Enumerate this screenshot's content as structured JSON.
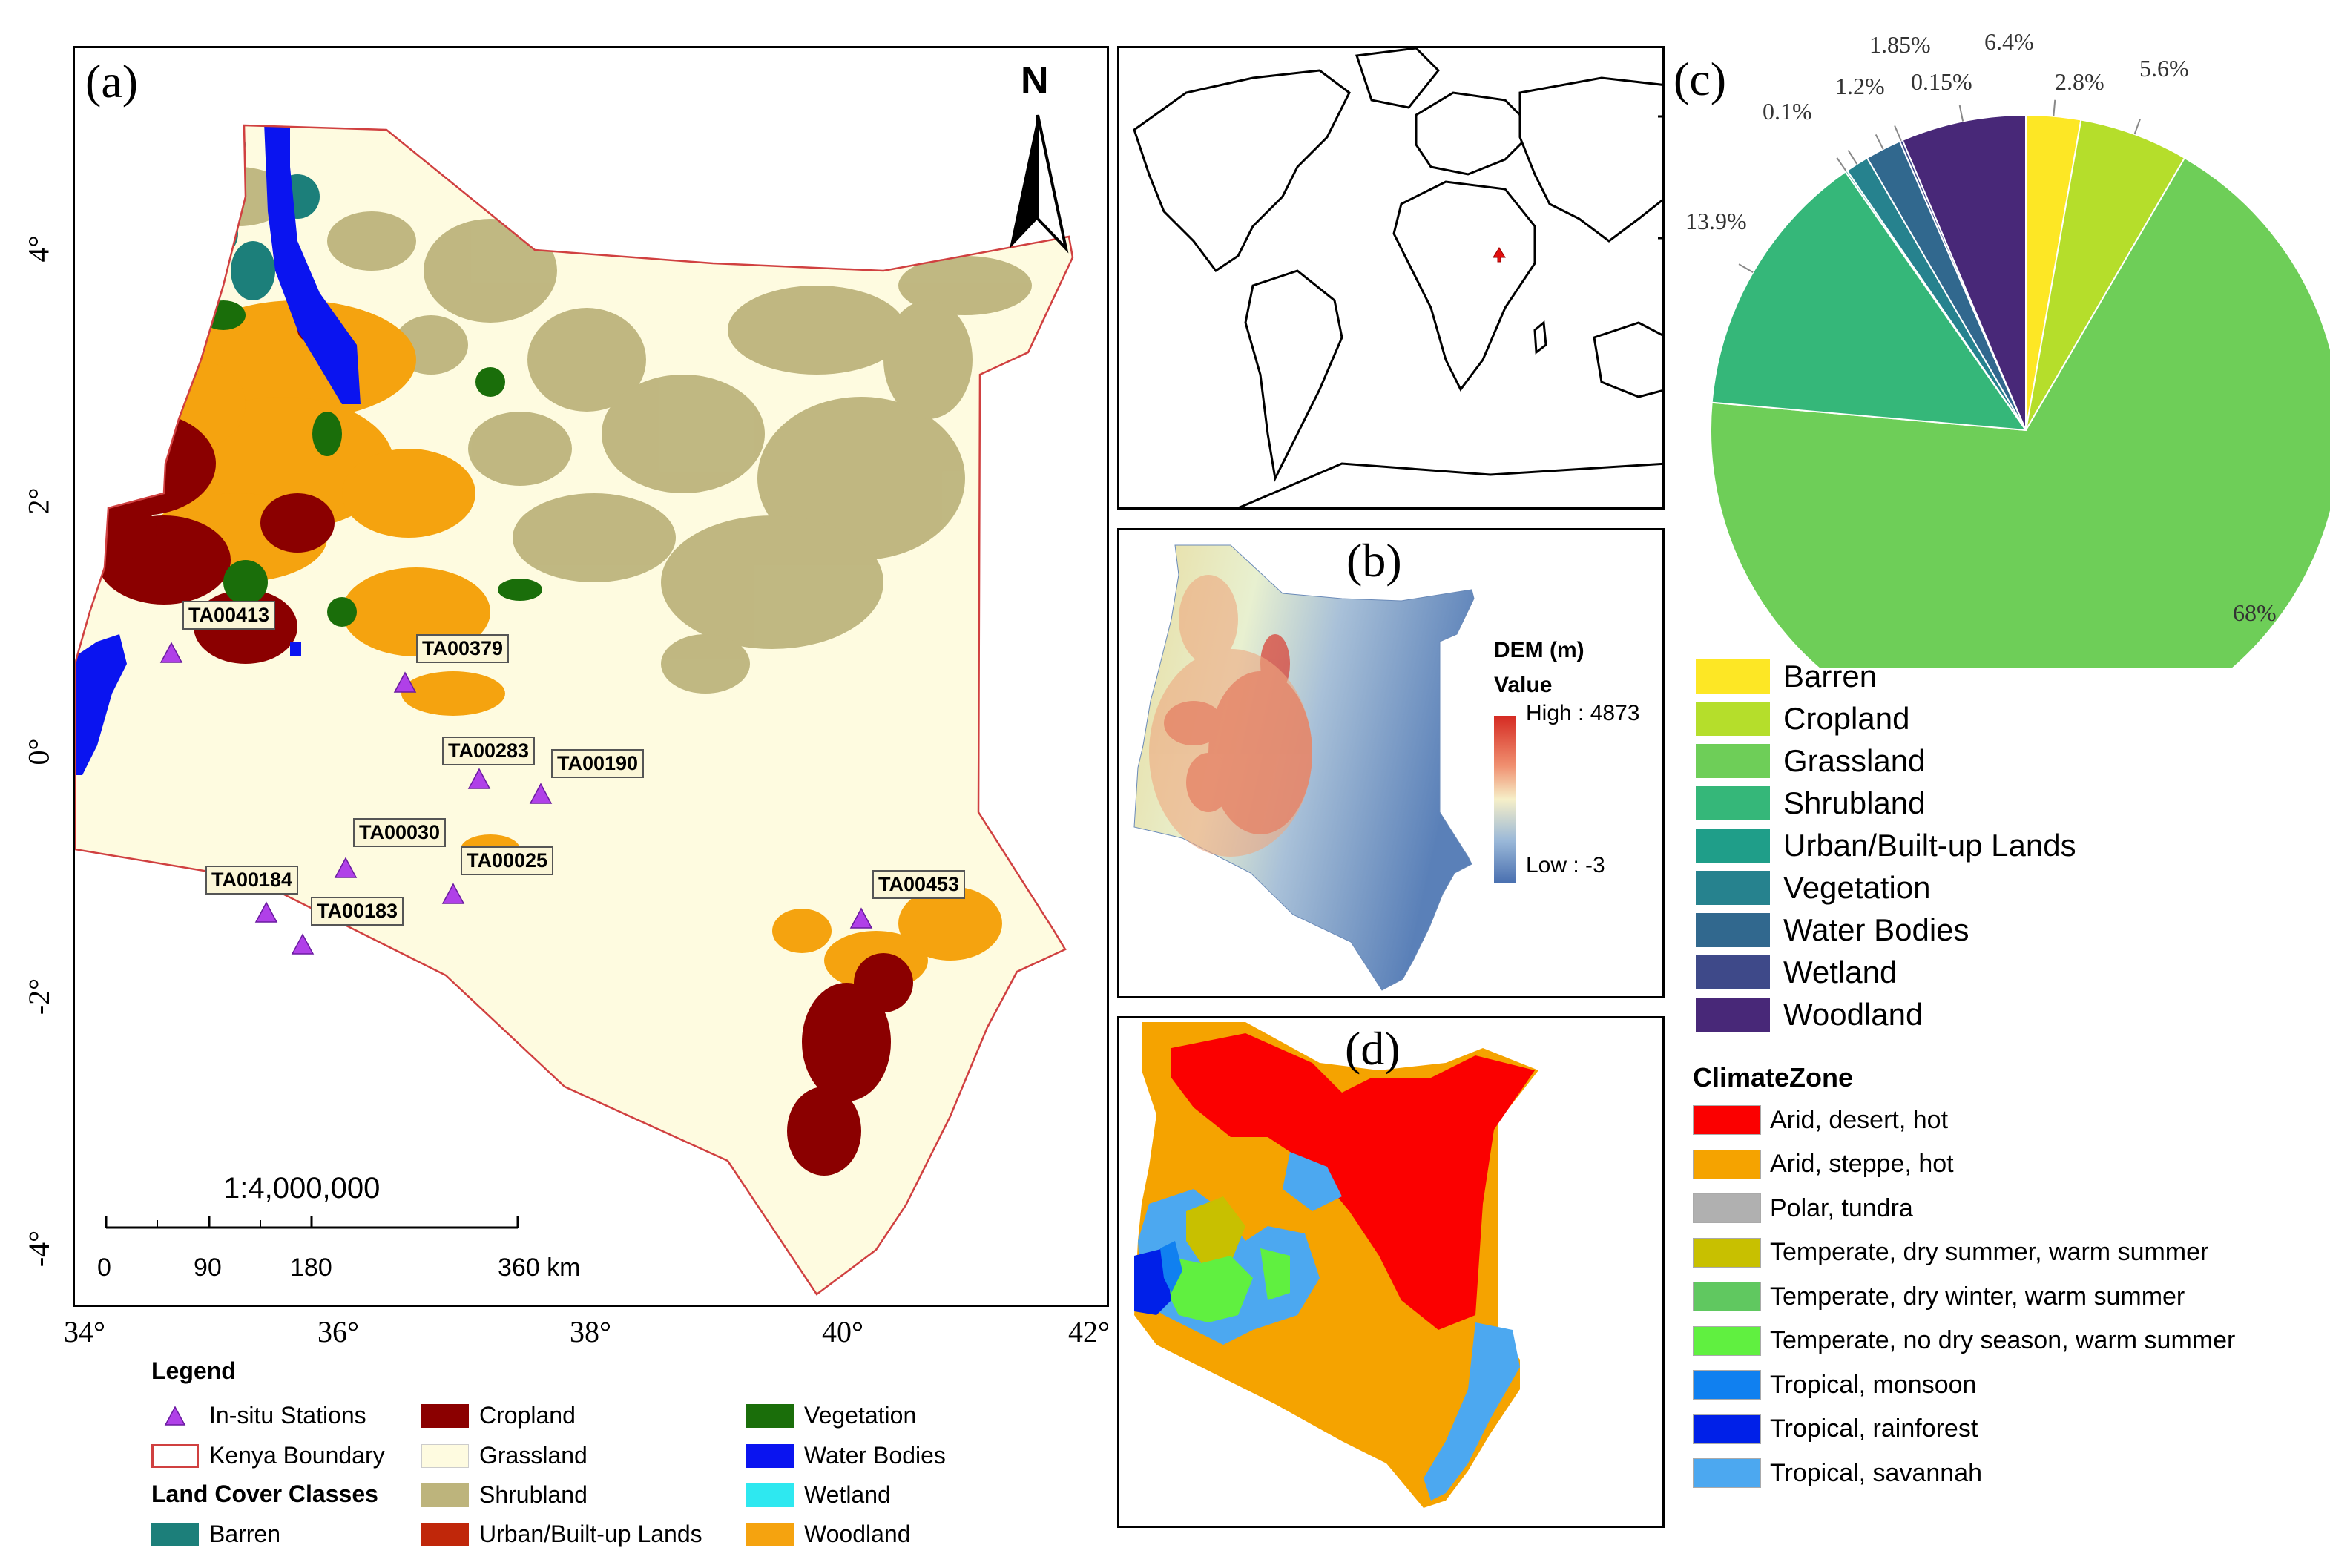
{
  "panel_a": {
    "label": "(a)",
    "north": "N",
    "scale_ratio": "1:4,000,000",
    "scalebar_ticks": [
      "0",
      "90",
      "180",
      "360 km"
    ],
    "x_ticks": [
      "34°",
      "36°",
      "38°",
      "40°",
      "42°"
    ],
    "y_ticks": [
      "4°",
      "2°",
      "0°",
      "-2°",
      "-4°"
    ],
    "stations": [
      "TA00413",
      "TA00379",
      "TA00283",
      "TA00190",
      "TA00030",
      "TA00025",
      "TA00184",
      "TA00183",
      "TA00453"
    ],
    "legend": {
      "title": "Legend",
      "in_situ": "In-situ Stations",
      "boundary": "Kenya Boundary",
      "classes_title": "Land Cover Classes",
      "barren": "Barren",
      "cropland": "Cropland",
      "grassland": "Grassland",
      "shrubland": "Shrubland",
      "urban": "Urban/Built-up Lands",
      "vegetation": "Vegetation",
      "water": "Water Bodies",
      "wetland": "Wetland",
      "woodland": "Woodland"
    }
  },
  "panel_b": {
    "label": "(b)",
    "legend_title": "DEM (m)",
    "value_label": "Value",
    "high": "High : 4873",
    "low": "Low : -3"
  },
  "panel_c": {
    "label": "(c)",
    "percent_labels": [
      "2.8%",
      "5.6%",
      "68%",
      "13.9%",
      "0.1%",
      "1.2%",
      "1.85%",
      "0.15%",
      "6.4%"
    ],
    "legend": [
      "Barren",
      "Cropland",
      "Grassland",
      "Shrubland",
      "Urban/Built-up Lands",
      "Vegetation",
      "Water Bodies",
      "Wetland",
      "Woodland"
    ]
  },
  "panel_d": {
    "label": "(d)",
    "legend_title": "ClimateZone",
    "legend": [
      "Arid, desert, hot",
      "Arid, steppe, hot",
      "Polar, tundra",
      "Temperate, dry summer, warm summer",
      "Temperate, dry winter, warm summer",
      "Temperate, no dry season, warm summer",
      "Tropical, monsoon",
      "Tropical, rainforest",
      "Tropical, savannah"
    ]
  },
  "chart_data": {
    "type": "pie",
    "categories": [
      "Barren",
      "Cropland",
      "Grassland",
      "Shrubland",
      "Urban/Built-up Lands",
      "Vegetation",
      "Water Bodies",
      "Wetland",
      "Woodland"
    ],
    "values": [
      2.8,
      5.6,
      68,
      13.9,
      0.1,
      1.2,
      1.85,
      0.15,
      6.4
    ],
    "colors": [
      "#fde725",
      "#b5de2b",
      "#6ece58",
      "#35b779",
      "#1f9e89",
      "#26828e",
      "#31688e",
      "#3e4989",
      "#482878"
    ]
  },
  "colors": {
    "grassland": "#fefbe0",
    "shrubland": "#bdb47c",
    "cropland": "#8b0000",
    "woodland": "#f5a30f",
    "vegetation": "#1a6e0a",
    "water": "#0a14f0",
    "barren": "#1c7f7a",
    "wetland": "#2ee8f0",
    "urban": "#c0270a",
    "station": "#b040e8",
    "boundary": "#d04040"
  }
}
